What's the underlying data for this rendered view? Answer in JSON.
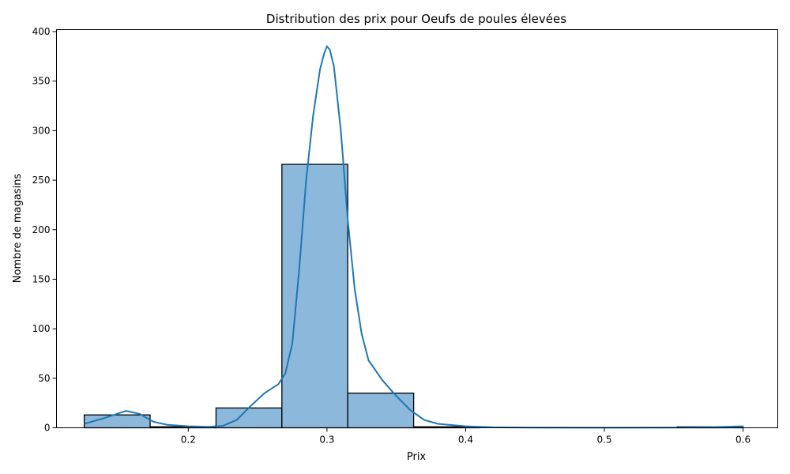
{
  "chart_data": {
    "type": "bar",
    "title": "Distribution des prix pour Oeufs de poules élevées",
    "xlabel": "Prix",
    "ylabel": "Nombre de magasins",
    "xlim": [
      0.105,
      0.625
    ],
    "ylim": [
      0,
      402
    ],
    "xticks": [
      0.2,
      0.3,
      0.4,
      0.5,
      0.6
    ],
    "yticks": [
      0,
      50,
      100,
      150,
      200,
      250,
      300,
      350,
      400
    ],
    "grid": false,
    "bin_edges": [
      0.125,
      0.1725,
      0.22,
      0.2675,
      0.315,
      0.3625,
      0.41,
      0.4575,
      0.505,
      0.5525,
      0.6
    ],
    "bin_counts": [
      13,
      1,
      20,
      266,
      35,
      1,
      0,
      0,
      0,
      1
    ],
    "kde": {
      "x": [
        0.125,
        0.14,
        0.155,
        0.165,
        0.175,
        0.185,
        0.2,
        0.215,
        0.225,
        0.235,
        0.245,
        0.255,
        0.265,
        0.27,
        0.275,
        0.28,
        0.285,
        0.29,
        0.295,
        0.298,
        0.3,
        0.302,
        0.305,
        0.31,
        0.315,
        0.32,
        0.325,
        0.33,
        0.34,
        0.35,
        0.36,
        0.37,
        0.38,
        0.4,
        0.42,
        0.45,
        0.5,
        0.55,
        0.58,
        0.6
      ],
      "y": [
        4,
        10,
        17,
        14,
        6,
        3,
        1.5,
        1,
        2,
        8,
        22,
        35,
        44,
        55,
        85,
        160,
        250,
        315,
        362,
        378,
        385,
        382,
        365,
        300,
        210,
        140,
        95,
        68,
        48,
        32,
        18,
        8,
        4,
        1.5,
        0.5,
        0.2,
        0.1,
        0.2,
        0.8,
        1.5
      ]
    },
    "bar_color": "#8bb8db",
    "bar_edge_color": "#000000",
    "kde_color": "#1f77b4"
  }
}
